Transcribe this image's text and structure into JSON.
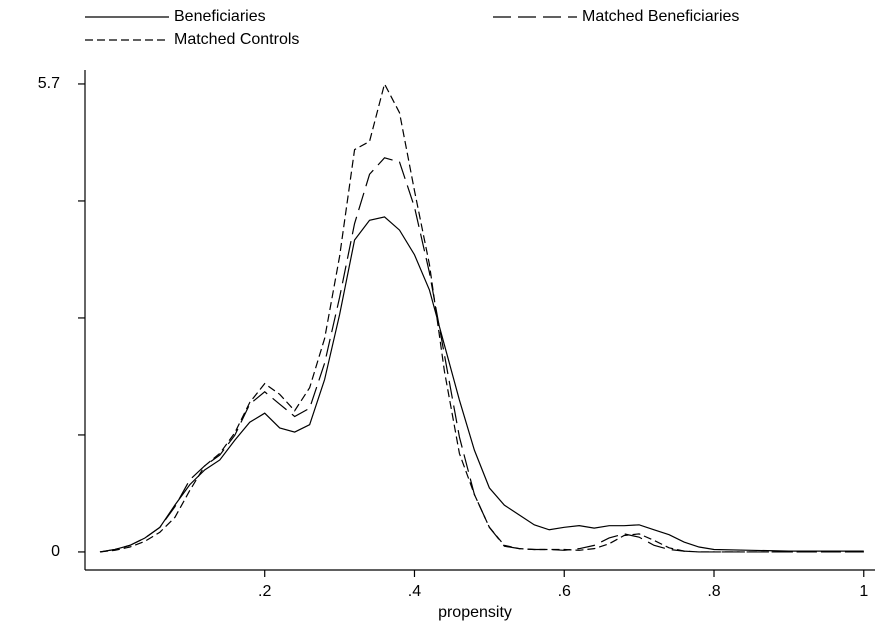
{
  "chart_data": {
    "type": "line",
    "x_label": "propensity",
    "x": [
      -0.02,
      0,
      0.02,
      0.04,
      0.06,
      0.08,
      0.1,
      0.12,
      0.14,
      0.16,
      0.18,
      0.2,
      0.22,
      0.24,
      0.26,
      0.28,
      0.3,
      0.32,
      0.34,
      0.36,
      0.38,
      0.4,
      0.42,
      0.44,
      0.46,
      0.48,
      0.5,
      0.52,
      0.54,
      0.56,
      0.58,
      0.6,
      0.62,
      0.64,
      0.66,
      0.68,
      0.7,
      0.72,
      0.74,
      0.76,
      0.78,
      0.8,
      0.85,
      0.9,
      0.95,
      1.0
    ],
    "series": [
      {
        "name": "Beneficiaries",
        "color": "#000000",
        "dash": "solid",
        "values": [
          0,
          0.03,
          0.08,
          0.17,
          0.3,
          0.57,
          0.82,
          1.0,
          1.12,
          1.36,
          1.58,
          1.69,
          1.51,
          1.46,
          1.55,
          2.1,
          2.89,
          3.8,
          4.04,
          4.08,
          3.92,
          3.62,
          3.19,
          2.52,
          1.85,
          1.24,
          0.78,
          0.57,
          0.45,
          0.33,
          0.27,
          0.3,
          0.32,
          0.29,
          0.32,
          0.32,
          0.33,
          0.27,
          0.21,
          0.12,
          0.06,
          0.03,
          0.02,
          0.01,
          0.01,
          0.01
        ]
      },
      {
        "name": "Matched Beneficiaries",
        "color": "#000000",
        "dash": "long",
        "values": [
          0,
          0.03,
          0.08,
          0.17,
          0.3,
          0.55,
          0.88,
          1.05,
          1.18,
          1.42,
          1.8,
          1.95,
          1.8,
          1.65,
          1.75,
          2.3,
          3.1,
          4.0,
          4.6,
          4.8,
          4.75,
          4.2,
          3.4,
          2.4,
          1.4,
          0.7,
          0.3,
          0.07,
          0.04,
          0.03,
          0.03,
          0.02,
          0.04,
          0.08,
          0.17,
          0.22,
          0.18,
          0.08,
          0.03,
          0.01,
          0,
          0,
          0,
          0,
          0,
          0
        ]
      },
      {
        "name": "Matched Controls",
        "color": "#000000",
        "dash": "short",
        "values": [
          0,
          0.02,
          0.06,
          0.13,
          0.24,
          0.42,
          0.75,
          1.05,
          1.2,
          1.45,
          1.82,
          2.05,
          1.92,
          1.72,
          2.0,
          2.6,
          3.6,
          4.9,
          5.0,
          5.7,
          5.35,
          4.4,
          3.5,
          2.2,
          1.2,
          0.7,
          0.3,
          0.08,
          0.04,
          0.03,
          0.03,
          0.03,
          0.02,
          0.04,
          0.1,
          0.2,
          0.22,
          0.14,
          0.05,
          0.01,
          0,
          0,
          0,
          0,
          0,
          0
        ]
      }
    ],
    "xlim": [
      -0.04,
      1.015
    ],
    "ylim": [
      -0.22,
      5.87
    ],
    "xticks": [
      {
        "value": 0.2,
        "label": ".2"
      },
      {
        "value": 0.4,
        "label": ".4"
      },
      {
        "value": 0.6,
        "label": ".6"
      },
      {
        "value": 0.8,
        "label": ".8"
      },
      1
    ],
    "yticks": [
      0,
      5.7
    ],
    "yminor_ticks": [
      1.425,
      2.85,
      4.275
    ],
    "grid": false
  }
}
